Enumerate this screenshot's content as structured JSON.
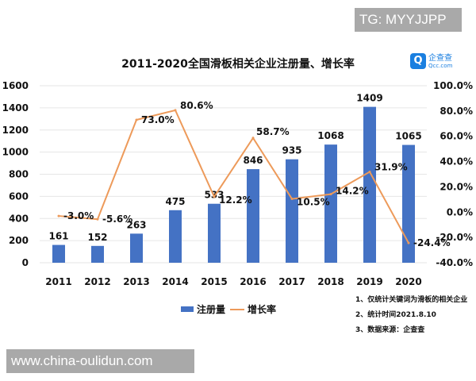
{
  "watermarks": {
    "top": "TG: MYYJJPP",
    "bottom": "www.china-oulidun.com"
  },
  "logo": {
    "icon": "qcc-logo",
    "name": "企查查",
    "domain": "Qcc.com"
  },
  "chart_data": {
    "type": "bar+line",
    "title": "2011-2020全国滑板相关企业注册量、增长率",
    "categories": [
      "2011",
      "2012",
      "2013",
      "2014",
      "2015",
      "2016",
      "2017",
      "2018",
      "2019",
      "2020"
    ],
    "series": [
      {
        "name": "注册量",
        "type": "bar",
        "axis": "left",
        "color": "#4472c4",
        "values": [
          161,
          152,
          263,
          475,
          533,
          846,
          935,
          1068,
          1409,
          1065
        ],
        "labels": [
          "161",
          "152",
          "263",
          "475",
          "533",
          "846",
          "935",
          "1068",
          "1409",
          "1065"
        ]
      },
      {
        "name": "增长率",
        "type": "line",
        "axis": "right",
        "color": "#ed9a5a",
        "values": [
          -3.0,
          -5.6,
          73.0,
          80.6,
          12.2,
          58.7,
          10.5,
          14.2,
          31.9,
          -24.4
        ],
        "labels": [
          "-3.0%",
          "-5.6%",
          "73.0%",
          "80.6%",
          "12.2%",
          "58.7%",
          "10.5%",
          "14.2%",
          "31.9%",
          "-24.4%"
        ]
      }
    ],
    "y_left": {
      "range": [
        0,
        1600
      ],
      "ticks": [
        "0",
        "200",
        "400",
        "600",
        "800",
        "1000",
        "1200",
        "1400",
        "1600"
      ]
    },
    "y_right": {
      "range": [
        -40,
        100
      ],
      "ticks": [
        "-40.0%",
        "-20.0%",
        "0.0%",
        "20.0%",
        "40.0%",
        "60.0%",
        "80.0%",
        "100.0%"
      ]
    },
    "grid": true,
    "legend": "bottom"
  },
  "notes": [
    "1、仅统计关键词为滑板的相关企业",
    "2、统计时间2021.8.10",
    "3、数据来源：企查查"
  ]
}
